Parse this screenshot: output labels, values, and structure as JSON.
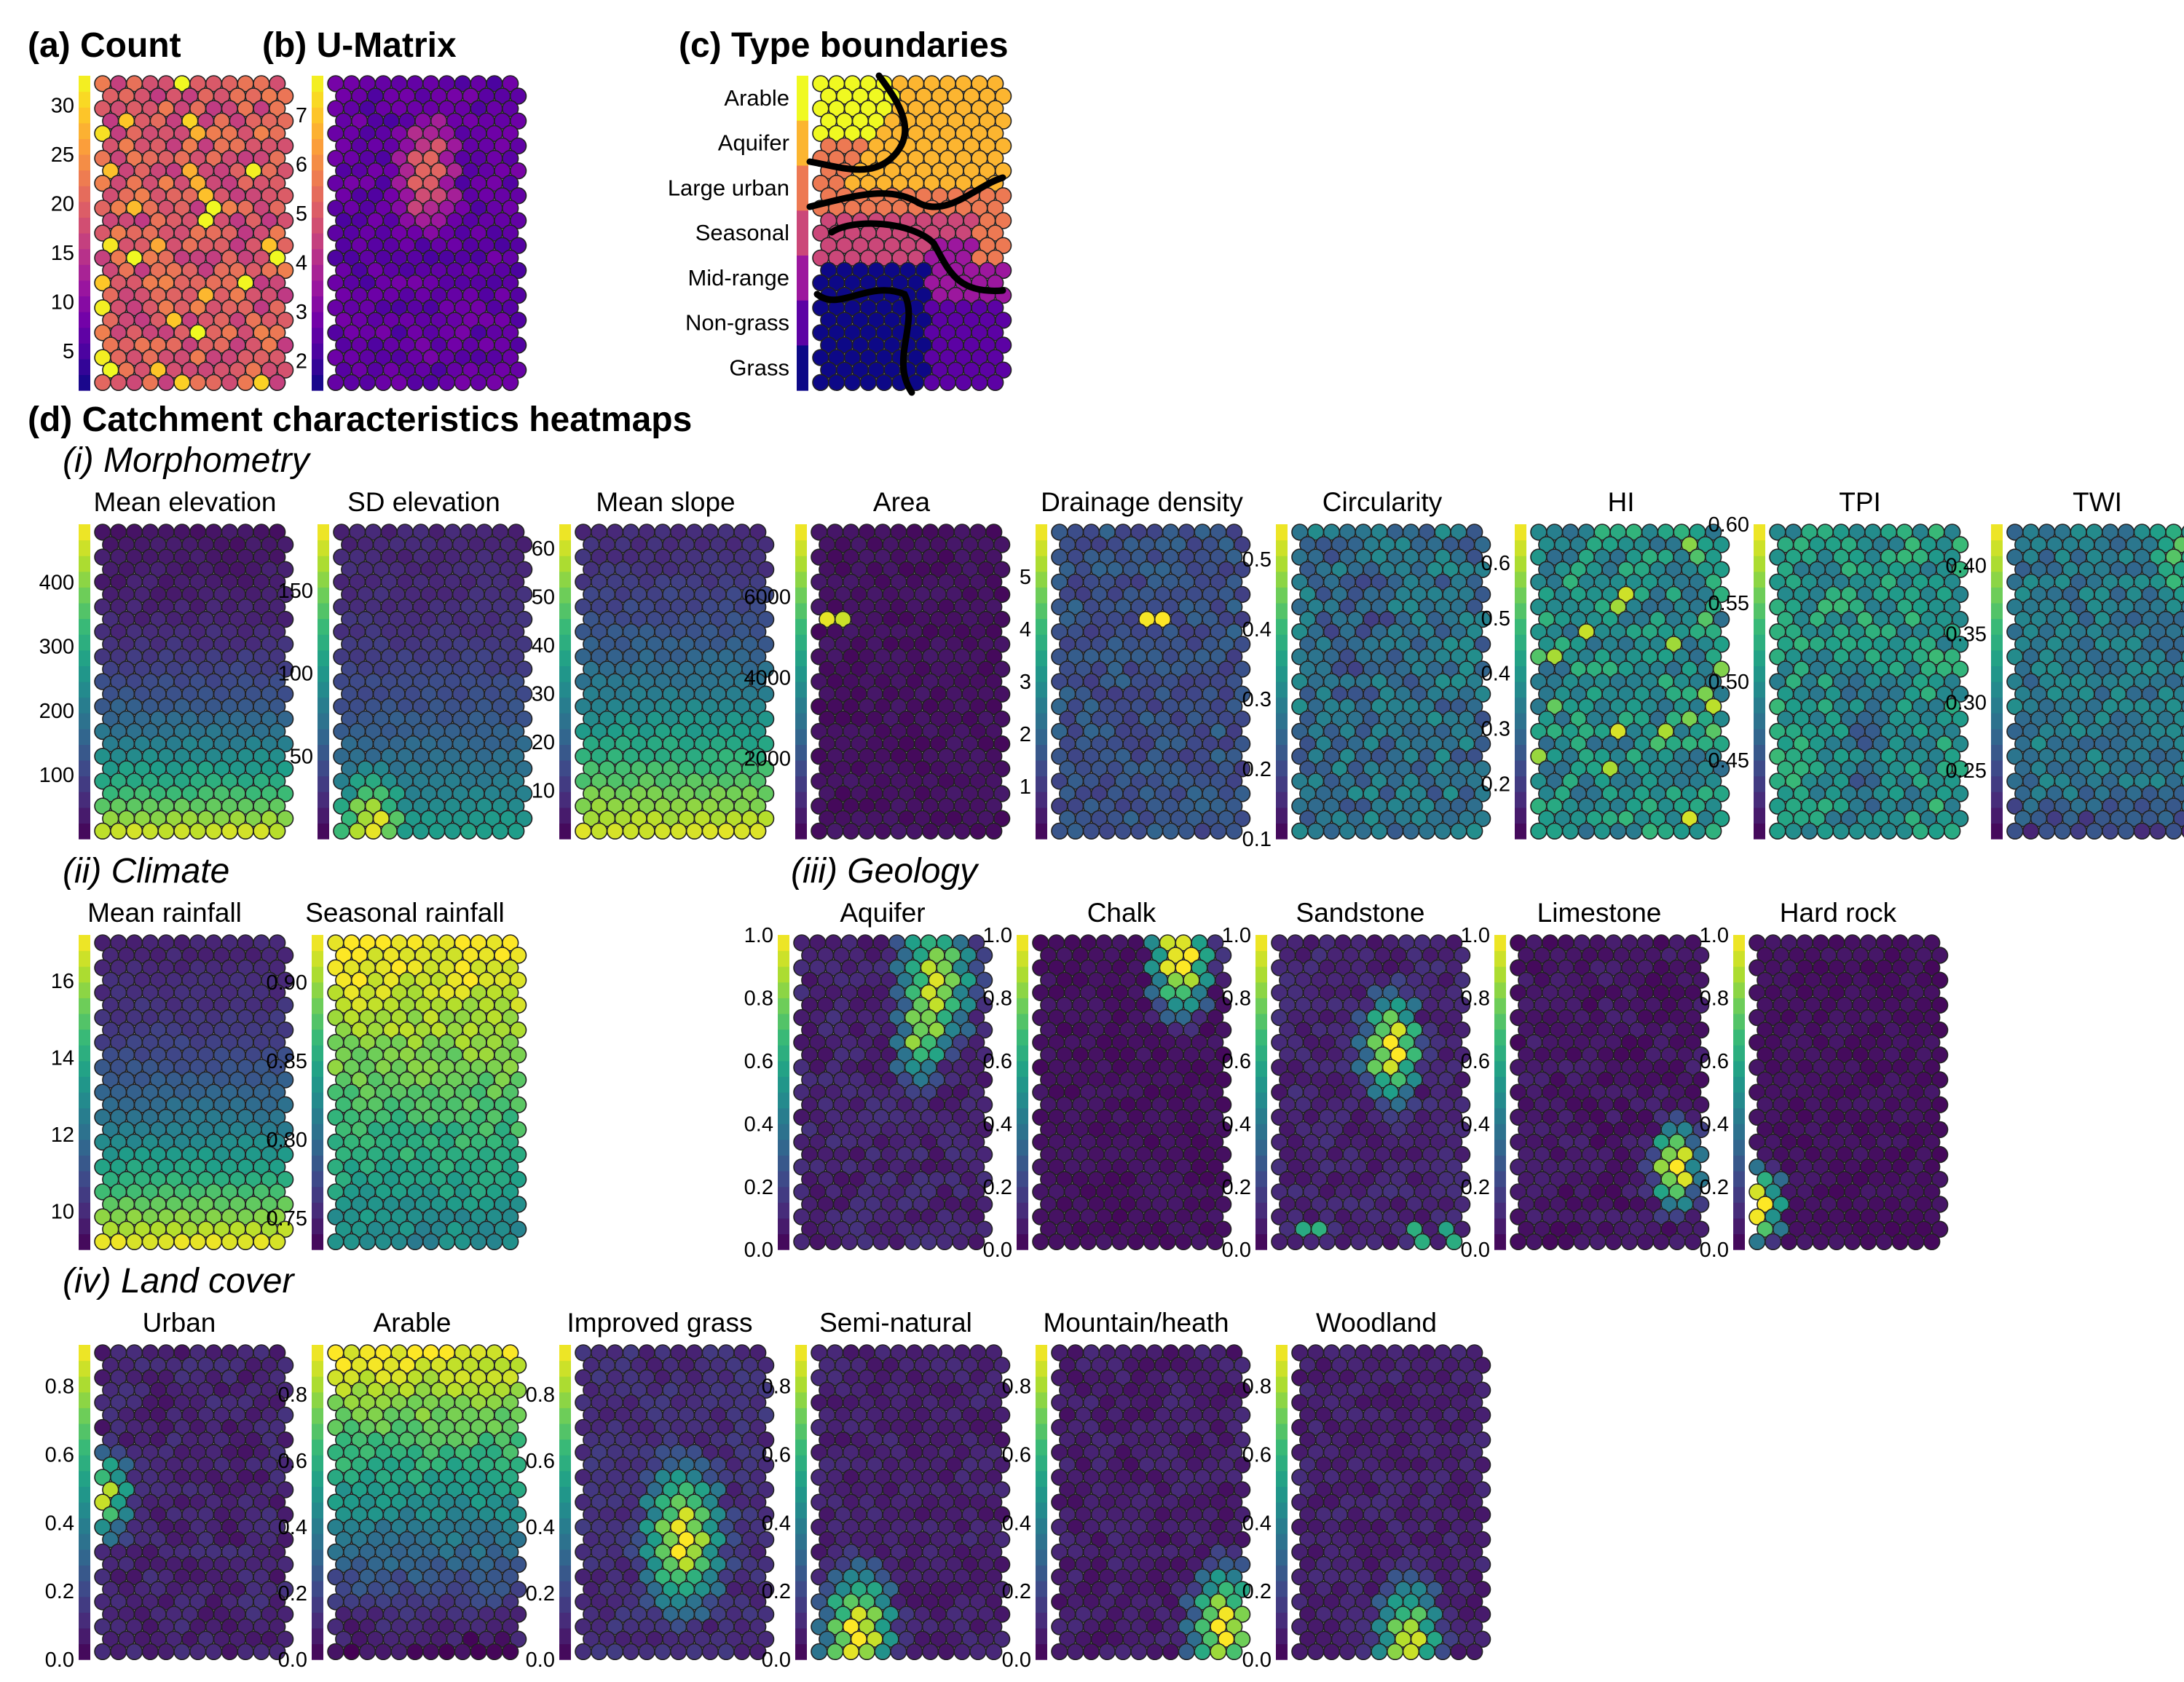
{
  "figure": {
    "panel_a_title": "(a)  Count",
    "panel_b_title": "(b)  U-Matrix",
    "panel_c_title": "(c) Type boundaries",
    "panel_d_title": "(d) Catchment characteristics heatmaps",
    "section_morphometry": "(i) Morphometry",
    "section_climate": "(ii) Climate",
    "section_geology": "(iii) Geology",
    "section_landcover": "(iv) Land cover"
  },
  "colors": {
    "plasma": [
      "#0d0887",
      "#46039f",
      "#7201a8",
      "#9c179e",
      "#bd3786",
      "#d8576b",
      "#ed7953",
      "#fb9f3a",
      "#fdca26",
      "#f0f921"
    ],
    "viridis": [
      "#440154",
      "#482878",
      "#3e4989",
      "#31688e",
      "#26828e",
      "#1f9e89",
      "#35b779",
      "#6ece58",
      "#b5de2b",
      "#fde725"
    ],
    "boundary": "#000000"
  },
  "chart_data": [
    {
      "id": "count",
      "type": "heatmap",
      "title": "",
      "colormap": "plasma",
      "grid": {
        "cols": 12,
        "rows": 26
      },
      "ylim": [
        1,
        33
      ],
      "ticks": [
        5,
        10,
        15,
        20,
        25,
        30
      ],
      "pattern": "noisy mid-high counts, mostly magenta-red, scattered orange/yellow cells"
    },
    {
      "id": "umatrix",
      "type": "heatmap",
      "title": "",
      "colormap": "plasma",
      "grid": {
        "cols": 12,
        "rows": 26
      },
      "ylim": [
        1.4,
        7.8
      ],
      "ticks": [
        2,
        3,
        4,
        5,
        6,
        7
      ],
      "pattern": "low distances (blue-purple) with a short orange ridge in the upper third"
    },
    {
      "id": "types",
      "type": "heatmap",
      "title": "",
      "colormap": "plasma",
      "grid": {
        "cols": 12,
        "rows": 26
      },
      "categories": [
        "Arable",
        "Aquifer",
        "Large urban",
        "Seasonal",
        "Mid-range",
        "Non-grass",
        "Grass"
      ],
      "pattern": "7 clusters separated by black boundaries"
    },
    {
      "group": "Morphometry",
      "title": "Mean elevation",
      "type": "heatmap",
      "colormap": "viridis",
      "ylim": [
        0,
        490
      ],
      "ticks": [
        100,
        200,
        300,
        400
      ],
      "pattern": "low (purple) at top, high (green-yellow) at bottom"
    },
    {
      "group": "Morphometry",
      "title": "SD elevation",
      "type": "heatmap",
      "colormap": "viridis",
      "ylim": [
        0,
        190
      ],
      "ticks": [
        50,
        100,
        150
      ],
      "pattern": "low at top, teal at bottom, yellow bottom-left corner"
    },
    {
      "group": "Morphometry",
      "title": "Mean slope",
      "type": "heatmap",
      "colormap": "viridis",
      "ylim": [
        0,
        65
      ],
      "ticks": [
        10,
        20,
        30,
        40,
        50,
        60
      ],
      "pattern": "low at top, green-yellow at bottom"
    },
    {
      "group": "Morphometry",
      "title": "Area",
      "type": "heatmap",
      "colormap": "viridis",
      "ylim": [
        0,
        7800
      ],
      "ticks": [
        2000,
        4000,
        6000
      ],
      "pattern": "almost uniformly low, a single yellow cell at left"
    },
    {
      "group": "Morphometry",
      "title": "Drainage density",
      "type": "heatmap",
      "colormap": "viridis",
      "ylim": [
        0,
        6
      ],
      "ticks": [
        1,
        2,
        3,
        4,
        5
      ],
      "pattern": "low blue-purple, one yellow cell near centre"
    },
    {
      "group": "Morphometry",
      "title": "Circularity",
      "type": "heatmap",
      "colormap": "viridis",
      "ylim": [
        0.1,
        0.55
      ],
      "ticks": [
        0.1,
        0.2,
        0.3,
        0.4,
        0.5
      ],
      "pattern": "mixed blue-teal, purple patches"
    },
    {
      "group": "Morphometry",
      "title": "HI",
      "type": "heatmap",
      "colormap": "viridis",
      "ylim": [
        0.1,
        0.67
      ],
      "ticks": [
        0.2,
        0.3,
        0.4,
        0.5,
        0.6
      ],
      "pattern": "mixed teal-green, scattered yellow cells"
    },
    {
      "group": "Morphometry",
      "title": "TPI",
      "type": "heatmap",
      "colormap": "viridis",
      "ylim": [
        0.4,
        0.6
      ],
      "ticks": [
        0.45,
        0.5,
        0.55,
        0.6
      ],
      "ticklabels": [
        "0.45",
        "0.50",
        "0.55",
        "0.60"
      ],
      "pattern": "mostly teal-green, darker band lower"
    },
    {
      "group": "Morphometry",
      "title": "TWI",
      "type": "heatmap",
      "colormap": "viridis",
      "ylim": [
        0.2,
        0.43
      ],
      "ticks": [
        0.25,
        0.3,
        0.35,
        0.4
      ],
      "ticklabels": [
        "0.25",
        "0.30",
        "0.35",
        "0.40"
      ],
      "pattern": "blue-teal, green top corners, purple bottom"
    },
    {
      "group": "Climate",
      "title": "Mean rainfall",
      "type": "heatmap",
      "colormap": "viridis",
      "ylim": [
        9,
        17.2
      ],
      "ticks": [
        10,
        12,
        14,
        16
      ],
      "pattern": "low at top, green-yellow at bottom"
    },
    {
      "group": "Climate",
      "title": "Seasonal rainfall",
      "type": "heatmap",
      "colormap": "viridis",
      "ylim": [
        0.73,
        0.93
      ],
      "ticks": [
        0.75,
        0.8,
        0.85,
        0.9
      ],
      "ticklabels": [
        "0.75",
        "0.80",
        "0.85",
        "0.90"
      ],
      "pattern": "high yellow-green at top, teal at bottom"
    },
    {
      "group": "Geology",
      "title": "Aquifer",
      "type": "heatmap",
      "colormap": "viridis",
      "ylim": [
        0,
        1
      ],
      "ticks": [
        0,
        0.2,
        0.4,
        0.6,
        0.8,
        1
      ],
      "ticklabels": [
        "0.0",
        "0.2",
        "0.4",
        "0.6",
        "0.8",
        "1.0"
      ],
      "pattern": "yellow block in upper right, otherwise purple"
    },
    {
      "group": "Geology",
      "title": "Chalk",
      "type": "heatmap",
      "colormap": "viridis",
      "ylim": [
        0,
        1
      ],
      "ticks": [
        0,
        0.2,
        0.4,
        0.6,
        0.8,
        1
      ],
      "ticklabels": [
        "0.0",
        "0.2",
        "0.4",
        "0.6",
        "0.8",
        "1.0"
      ],
      "pattern": "yellow patch top right only"
    },
    {
      "group": "Geology",
      "title": "Sandstone",
      "type": "heatmap",
      "colormap": "viridis",
      "ylim": [
        0,
        1
      ],
      "ticks": [
        0,
        0.2,
        0.4,
        0.6,
        0.8,
        1
      ],
      "ticklabels": [
        "0.0",
        "0.2",
        "0.4",
        "0.6",
        "0.8",
        "1.0"
      ],
      "pattern": "green-yellow patch upper middle-right, bits at bottom"
    },
    {
      "group": "Geology",
      "title": "Limestone",
      "type": "heatmap",
      "colormap": "viridis",
      "ylim": [
        0,
        1
      ],
      "ticks": [
        0,
        0.2,
        0.4,
        0.6,
        0.8,
        1
      ],
      "ticklabels": [
        "0.0",
        "0.2",
        "0.4",
        "0.6",
        "0.8",
        "1.0"
      ],
      "pattern": "yellow patch lower right"
    },
    {
      "group": "Geology",
      "title": "Hard rock",
      "type": "heatmap",
      "colormap": "viridis",
      "ylim": [
        0,
        1
      ],
      "ticks": [
        0,
        0.2,
        0.4,
        0.6,
        0.8,
        1
      ],
      "ticklabels": [
        "0.0",
        "0.2",
        "0.4",
        "0.6",
        "0.8",
        "1.0"
      ],
      "pattern": "yellow patch bottom-left edge"
    },
    {
      "group": "Land cover",
      "title": "Urban",
      "type": "heatmap",
      "colormap": "viridis",
      "ylim": [
        0,
        0.92
      ],
      "ticks": [
        0,
        0.2,
        0.4,
        0.6,
        0.8
      ],
      "ticklabels": [
        "0.0",
        "0.2",
        "0.4",
        "0.6",
        "0.8"
      ],
      "pattern": "yellow cells on left edge mid-height"
    },
    {
      "group": "Land cover",
      "title": "Arable",
      "type": "heatmap",
      "colormap": "viridis",
      "ylim": [
        0,
        0.95
      ],
      "ticks": [
        0,
        0.2,
        0.4,
        0.6,
        0.8
      ],
      "ticklabels": [
        "0.0",
        "0.2",
        "0.4",
        "0.6",
        "0.8"
      ],
      "pattern": "high green-yellow at top, teal middle, purple bottom"
    },
    {
      "group": "Land cover",
      "title": "Improved grass",
      "type": "heatmap",
      "colormap": "viridis",
      "ylim": [
        0,
        0.95
      ],
      "ticks": [
        0,
        0.2,
        0.4,
        0.6,
        0.8
      ],
      "ticklabels": [
        "0.0",
        "0.2",
        "0.4",
        "0.6",
        "0.8"
      ],
      "pattern": "yellow wedge middle-lower, purple elsewhere"
    },
    {
      "group": "Land cover",
      "title": "Semi-natural",
      "type": "heatmap",
      "colormap": "viridis",
      "ylim": [
        0,
        0.92
      ],
      "ticks": [
        0,
        0.2,
        0.4,
        0.6,
        0.8
      ],
      "ticklabels": [
        "0.0",
        "0.2",
        "0.4",
        "0.6",
        "0.8"
      ],
      "pattern": "green-yellow at bottom-left, purple elsewhere"
    },
    {
      "group": "Land cover",
      "title": "Mountain/heath",
      "type": "heatmap",
      "colormap": "viridis",
      "ylim": [
        0,
        0.92
      ],
      "ticks": [
        0,
        0.2,
        0.4,
        0.6,
        0.8
      ],
      "ticklabels": [
        "0.0",
        "0.2",
        "0.4",
        "0.6",
        "0.8"
      ],
      "pattern": "yellow-green at bottom right, purple elsewhere"
    },
    {
      "group": "Land cover",
      "title": "Woodland",
      "type": "heatmap",
      "colormap": "viridis",
      "ylim": [
        0,
        0.92
      ],
      "ticks": [
        0,
        0.2,
        0.4,
        0.6,
        0.8
      ],
      "ticklabels": [
        "0.0",
        "0.2",
        "0.4",
        "0.6",
        "0.8"
      ],
      "pattern": "mostly purple, green-yellow at bottom centre"
    }
  ]
}
